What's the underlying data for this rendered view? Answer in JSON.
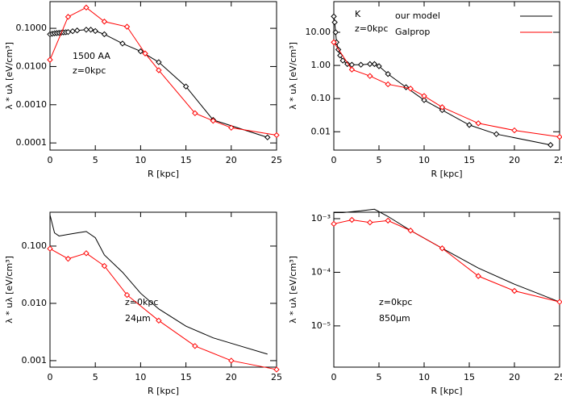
{
  "chart_data": [
    {
      "type": "line",
      "log_y": true,
      "xlabel": "R [kpc]",
      "ylabel": "λ * uλ [eV/cm³]",
      "annotations": [
        "1500 AA",
        "z=0kpc"
      ],
      "xlim": [
        0,
        25
      ],
      "xticks": [
        0,
        5,
        10,
        15,
        20,
        25
      ],
      "ylim": [
        6.5e-05,
        0.5
      ],
      "yticks": [
        {
          "value": 0.0001,
          "label": "0.0001"
        },
        {
          "value": 0.001,
          "label": "0.0010"
        },
        {
          "value": 0.01,
          "label": "0.0100"
        },
        {
          "value": 0.1,
          "label": "0.1000"
        }
      ],
      "series": [
        {
          "color": "#000000",
          "marker": "diamond",
          "x": [
            0,
            0.25,
            0.5,
            0.75,
            1,
            1.25,
            1.5,
            1.75,
            2,
            2.5,
            3,
            4,
            4.5,
            5,
            6,
            8,
            10,
            12,
            15,
            18,
            24
          ],
          "values": [
            0.07,
            0.072,
            0.074,
            0.075,
            0.076,
            0.077,
            0.078,
            0.079,
            0.08,
            0.084,
            0.088,
            0.092,
            0.092,
            0.085,
            0.07,
            0.04,
            0.025,
            0.013,
            0.003,
            0.0004,
            0.00014
          ]
        },
        {
          "color": "#ff0000",
          "marker": "diamond",
          "x": [
            0,
            2,
            4,
            6,
            8.5,
            10.5,
            12,
            16,
            18,
            20,
            25
          ],
          "values": [
            0.015,
            0.2,
            0.35,
            0.15,
            0.11,
            0.022,
            0.008,
            0.0006,
            0.00038,
            0.00025,
            0.00016
          ]
        }
      ]
    },
    {
      "type": "line",
      "log_y": true,
      "xlabel": "R [kpc]",
      "ylabel": "λ * uλ [eV/cm³]",
      "annotations": [
        "K",
        "z=0kpc"
      ],
      "xlim": [
        0,
        25
      ],
      "xticks": [
        0,
        5,
        10,
        15,
        20,
        25
      ],
      "ylim": [
        0.0028,
        84
      ],
      "yticks": [
        {
          "value": 0.01,
          "label": "0.01"
        },
        {
          "value": 0.1,
          "label": "0.10"
        },
        {
          "value": 1,
          "label": "1.00"
        },
        {
          "value": 10,
          "label": "10.00"
        }
      ],
      "series": [
        {
          "name": "our model",
          "color": "#000000",
          "marker": "diamond",
          "x": [
            0,
            0.1,
            0.2,
            0.3,
            0.5,
            0.7,
            1,
            1.5,
            2,
            3,
            4,
            4.5,
            5,
            6,
            8,
            10,
            12,
            15,
            18,
            24
          ],
          "values": [
            30,
            20,
            10,
            5,
            3,
            2,
            1.4,
            1.1,
            1.05,
            1.05,
            1.1,
            1.1,
            0.95,
            0.55,
            0.22,
            0.09,
            0.045,
            0.016,
            0.0085,
            0.004
          ]
        },
        {
          "name": "Galprop",
          "color": "#ff0000",
          "marker": "diamond",
          "x": [
            0,
            2,
            4,
            6,
            8.5,
            10,
            12,
            16,
            20,
            25
          ],
          "values": [
            5,
            0.75,
            0.48,
            0.27,
            0.2,
            0.12,
            0.055,
            0.018,
            0.011,
            0.007
          ]
        }
      ]
    },
    {
      "type": "line",
      "log_y": true,
      "xlabel": "R [kpc]",
      "ylabel": "λ * uλ [eV/cm³]",
      "annotations": [
        "z=0kpc",
        "24μm"
      ],
      "xlim": [
        0,
        25
      ],
      "xticks": [
        0,
        5,
        10,
        15,
        20,
        25
      ],
      "ylim": [
        0.00077,
        0.39
      ],
      "yticks": [
        0.001,
        {
          "value": 0.01,
          "label": "0.010"
        },
        {
          "value": 0.1,
          "label": "0.100"
        }
      ],
      "series": [
        {
          "color": "#000000",
          "marker": null,
          "x": [
            0,
            0.5,
            1,
            2,
            3,
            4,
            5,
            6,
            8,
            10,
            12,
            15,
            18,
            21,
            24
          ],
          "values": [
            0.35,
            0.17,
            0.15,
            0.16,
            0.17,
            0.18,
            0.14,
            0.07,
            0.035,
            0.015,
            0.008,
            0.004,
            0.0025,
            0.0018,
            0.0013
          ]
        },
        {
          "color": "#ff0000",
          "marker": "diamond",
          "x": [
            0,
            2,
            4,
            6,
            8.5,
            12,
            16,
            20,
            25
          ],
          "values": [
            0.09,
            0.06,
            0.075,
            0.045,
            0.014,
            0.005,
            0.0018,
            0.001,
            0.0007
          ]
        }
      ]
    },
    {
      "type": "line",
      "log_y": true,
      "xlabel": "R [kpc]",
      "ylabel": "λ * uλ [eV/cm³]",
      "annotations": [
        "z=0kpc",
        "850μm"
      ],
      "xlim": [
        0,
        25
      ],
      "xticks": [
        0,
        5,
        10,
        15,
        20,
        25
      ],
      "ylim": [
        1.7e-06,
        0.00132
      ],
      "yticks": [
        {
          "value": 1e-05,
          "label": "10⁻⁵"
        },
        {
          "value": 0.0001,
          "label": "10⁻⁴"
        },
        {
          "value": 0.001,
          "label": "10⁻³"
        }
      ],
      "series": [
        {
          "color": "#000000",
          "marker": null,
          "x": [
            0,
            1,
            3,
            4.5,
            6,
            8.5,
            12,
            16,
            20,
            25
          ],
          "values": [
            0.0013,
            0.0013,
            0.0014,
            0.0015,
            0.0011,
            0.0006,
            0.00028,
            0.00012,
            6e-05,
            2.8e-05
          ]
        },
        {
          "color": "#ff0000",
          "marker": "diamond",
          "x": [
            0,
            2,
            4,
            6,
            8.5,
            12,
            16,
            20,
            25
          ],
          "values": [
            0.0008,
            0.00095,
            0.00085,
            0.00092,
            0.0006,
            0.00028,
            8.5e-05,
            4.5e-05,
            2.8e-05
          ]
        }
      ]
    }
  ]
}
